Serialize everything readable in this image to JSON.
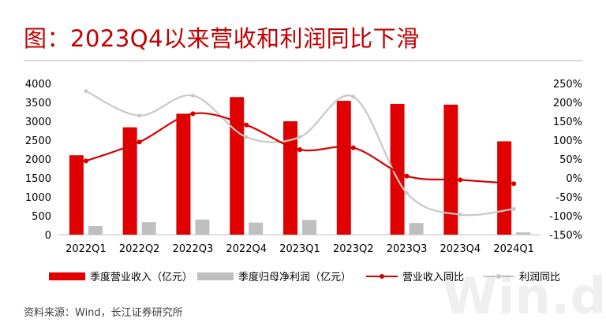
{
  "title": "图：2023Q4以来营收和利润同比下滑",
  "source": "资料来源：Wind，长江证券研究所",
  "watermark": "Win.d",
  "colors": {
    "title": "#c00000",
    "revenue_bar": "#e00000",
    "profit_bar": "#bfbfbf",
    "revenue_line": "#d40000",
    "profit_line": "#c8c8c8"
  },
  "chart_data": {
    "type": "bar",
    "categories": [
      "2022Q1",
      "2022Q2",
      "2022Q3",
      "2022Q4",
      "2023Q1",
      "2023Q2",
      "2023Q3",
      "2023Q4",
      "2024Q1"
    ],
    "series": [
      {
        "name": "季度营业收入（亿元）",
        "kind": "bar",
        "axis": "left",
        "values": [
          2100,
          2840,
          3200,
          3640,
          3000,
          3540,
          3460,
          3440,
          2470
        ]
      },
      {
        "name": "季度归母净利润（亿元）",
        "kind": "bar",
        "axis": "left",
        "values": [
          230,
          330,
          400,
          320,
          390,
          0,
          310,
          0,
          60
        ]
      },
      {
        "name": "营业收入同比",
        "kind": "line",
        "axis": "right",
        "values": [
          45,
          95,
          170,
          140,
          75,
          80,
          5,
          -5,
          -15
        ]
      },
      {
        "name": "利润同比",
        "kind": "line",
        "axis": "right",
        "values": [
          230,
          165,
          218,
          108,
          108,
          215,
          -40,
          -97,
          -82
        ]
      }
    ],
    "y_left": {
      "min": 0,
      "max": 4000,
      "ticks": [
        "0",
        "500",
        "1000",
        "1500",
        "2000",
        "2500",
        "3000",
        "3500",
        "4000"
      ]
    },
    "y_right": {
      "min": -150,
      "max": 250,
      "ticks": [
        "-150%",
        "-100%",
        "-50%",
        "0%",
        "50%",
        "100%",
        "150%",
        "200%",
        "250%"
      ]
    },
    "legend_position": "bottom",
    "grid": false
  }
}
